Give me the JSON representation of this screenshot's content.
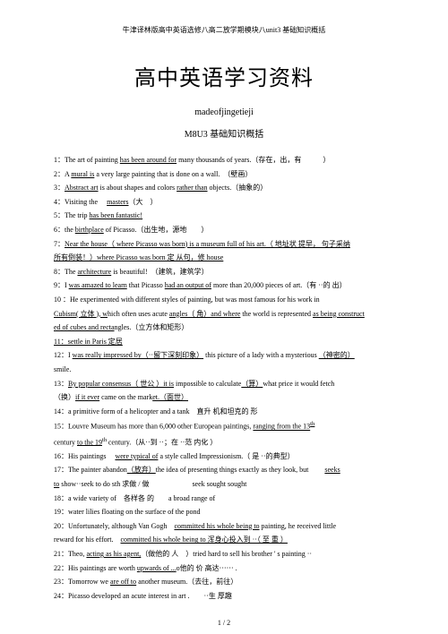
{
  "header": "牛津译林版高中英语选修八高二放学期模块八unit3 基础知识概括",
  "mainTitle": "高中英语学习资料",
  "subtitle1": "madeofjingetieji",
  "subtitle2": "M8U3 基础知识概括",
  "items": {
    "i1a": "1：The art of painting ",
    "i1b": "has been around for",
    "i1c": " many thousands of years.（存在，出，有　　　）",
    "i2a": "2：A ",
    "i2b": "mural is",
    "i2c": " a very large painting that is done on a wall.　（壁画）",
    "i3a": "3：",
    "i3b": "Abstract art",
    "i3c": " is about shapes and colors ",
    "i3d": "rather than",
    "i3e": " objects.（抽象的）",
    "i4a": "4：Visiting the 　",
    "i4b": "masters",
    "i4c": "（大　）",
    "i5a": "5：The trip ",
    "i5b": "has been fantastic!",
    "i6a": "6：the ",
    "i6b": "birthplace",
    "i6c": " of Picasso.（出生地，源地　　）",
    "i7a": "7：",
    "i7b": "Near the house（ where Picasso was born) is a museum full of his art.（ 地址状 提早， 句子采纳",
    "i7c": "所有倒装！）where Picasso was born  定 从句，修  house",
    "i8a": "8：The ",
    "i8b": "architecture",
    "i8c": " is beautiful!　（建筑，建筑学）",
    "i9a": "9：I ",
    "i9b": "was amazed to learn",
    "i9c": " that Picasso ",
    "i9d": "had an output of",
    "i9e": " more than 20,000 pieces of art.（有 ··的 出）",
    "i10a": "10 ：He experimented with different styles of painting, but was most famous for his work in",
    "i10b": "Cubism( 立体  ), w",
    "i10c": "hich often uses acute ",
    "i10d": "angles（ 角）and where",
    "i10e": " the world is represented ",
    "i10f": "as being construct",
    "i10g": "ed of cubes and recta",
    "i10h": "ngles.",
    "i10i": "（立方体和矩形）",
    "i11": "11：settle in Paris 定居",
    "i12a": "12：I ",
    "i12b": "was really impressed by（··留下深刻印象）",
    "i12c": " this picture of a lady with a mysterious ",
    "i12d": "（神密的）",
    "i12e": "smile.",
    "i13a": "13：",
    "i13b": "By popular consensus（ 世公 ）it is",
    "i13c": " impossible to calculate",
    "i13d": "（算）",
    "i13e": "what price it would fetch",
    "i14a": "（换）",
    "i14b": "if it ever",
    "i14c": " came on the mark",
    "i14d": "et.（面世）",
    "i15a": "14：a primitive form of a helicopter and a tank　直升 机和坦克的 形",
    "i16a": "15：Louvre  Museum has more than 6,000 other European paintings, ",
    "i16b": "ranging from the 13",
    "i16c": "th",
    "i17a": "century ",
    "i17b": "to the 19",
    "i17c": "th ",
    "i17d": "century.（从··到 ··；在 ··范 内化 ）",
    "i18a": "16：His paintings 　",
    "i18b": "were typical of",
    "i18c": " a style called Impressionism.（ 是 ··的典型）",
    "i19a": "17：The painter abandon",
    "i19b": "（放弃）",
    "i19c": "the idea of presenting things exactly as they look, but 　　",
    "i19d": "seeks",
    "i20a": "to",
    "i20b": " show··seek to do sth  求做 / 做　　　　　　seek sought  sought",
    "i21a": "18：a wide variety of　各样各 的　　a broad range of",
    "i22a": "19：water lilies floating on the surface of the pond",
    "i23a": "20：Unfortunately, although Van Gogh　",
    "i23b": "committed his whole being to",
    "i23c": " painting, he received little",
    "i24a": "reward for his effort.　",
    "i24b": "committed his whole being to 浑身心投入到 ··（ 至 重 ）",
    "i25a": "21：Theo, ",
    "i25b": "acting as his agent,",
    "i25c": "（做他的 人　）tried hard to sell his brother ' s painting ··",
    "i26a": "22：His paintings are worth ",
    "i26b": "upwards of ...",
    "i26c": "o他的 价 高达⋯⋯ .",
    "i27a": "23：Tomorrow we ",
    "i27b": "are off to",
    "i27c": " another museum.（去往，前往）",
    "i28a": "24：Picasso developed an acute interest in art .　　··生 厚趣",
    "pageNum": "1 / 2"
  }
}
